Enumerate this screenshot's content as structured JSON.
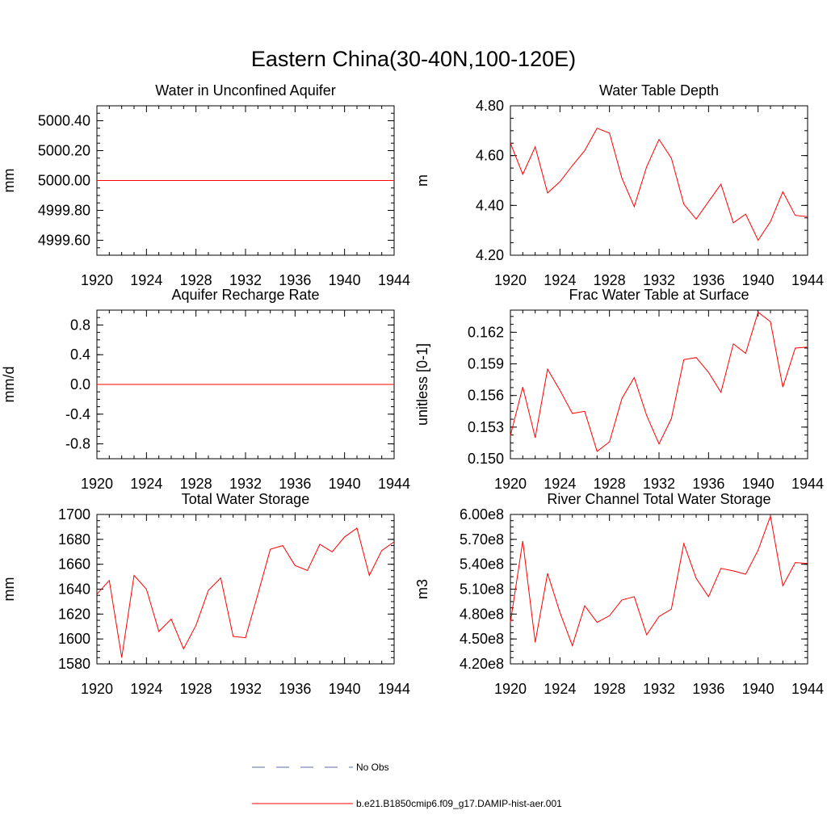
{
  "figure": {
    "title": "Eastern China(30-40N,100-120E)"
  },
  "chart_data": [
    {
      "type": "line",
      "title": "Water in Unconfined Aquifer",
      "ylabel": "mm",
      "xlim": [
        1920,
        1944
      ],
      "ylim": [
        4999.5,
        5000.5
      ],
      "xticks": [
        "1920",
        "1924",
        "1928",
        "1932",
        "1936",
        "1940",
        "1944"
      ],
      "yticks": [
        {
          "v": 4999.6,
          "label": "4999.60"
        },
        {
          "v": 4999.8,
          "label": "4999.80"
        },
        {
          "v": 5000.0,
          "label": "5000.00"
        },
        {
          "v": 5000.2,
          "label": "5000.20"
        },
        {
          "v": 5000.4,
          "label": "5000.40"
        }
      ],
      "x": [
        1920,
        1921,
        1922,
        1923,
        1924,
        1925,
        1926,
        1927,
        1928,
        1929,
        1930,
        1931,
        1932,
        1933,
        1934,
        1935,
        1936,
        1937,
        1938,
        1939,
        1940,
        1941,
        1942,
        1943,
        1944
      ],
      "series": [
        {
          "values": [
            5000,
            5000,
            5000,
            5000,
            5000,
            5000,
            5000,
            5000,
            5000,
            5000,
            5000,
            5000,
            5000,
            5000,
            5000,
            5000,
            5000,
            5000,
            5000,
            5000,
            5000,
            5000,
            5000,
            5000,
            5000
          ]
        }
      ]
    },
    {
      "type": "line",
      "title": "Water Table Depth",
      "ylabel": "m",
      "xlim": [
        1920,
        1944
      ],
      "ylim": [
        4.2,
        4.8
      ],
      "xticks": [
        "1920",
        "1924",
        "1928",
        "1932",
        "1936",
        "1940",
        "1944"
      ],
      "yticks": [
        {
          "v": 4.2,
          "label": "4.20"
        },
        {
          "v": 4.4,
          "label": "4.40"
        },
        {
          "v": 4.6,
          "label": "4.60"
        },
        {
          "v": 4.8,
          "label": "4.80"
        }
      ],
      "x": [
        1920,
        1921,
        1922,
        1923,
        1924,
        1925,
        1926,
        1927,
        1928,
        1929,
        1930,
        1931,
        1932,
        1933,
        1934,
        1935,
        1936,
        1937,
        1938,
        1939,
        1940,
        1941,
        1942,
        1943,
        1944
      ],
      "series": [
        {
          "values": [
            4.65,
            4.525,
            4.635,
            4.45,
            4.495,
            4.56,
            4.62,
            4.71,
            4.69,
            4.51,
            4.395,
            4.555,
            4.665,
            4.59,
            4.405,
            4.345,
            4.415,
            4.485,
            4.33,
            4.365,
            4.26,
            4.335,
            4.455,
            4.36,
            4.355
          ]
        }
      ]
    },
    {
      "type": "line",
      "title": "Aquifer Recharge Rate",
      "ylabel": "mm/d",
      "xlim": [
        1920,
        1944
      ],
      "ylim": [
        -1.0,
        1.0
      ],
      "xticks": [
        "1920",
        "1924",
        "1928",
        "1932",
        "1936",
        "1940",
        "1944"
      ],
      "yticks": [
        {
          "v": -0.8,
          "label": "-0.8"
        },
        {
          "v": -0.4,
          "label": "-0.4"
        },
        {
          "v": 0.0,
          "label": "0.0"
        },
        {
          "v": 0.4,
          "label": "0.4"
        },
        {
          "v": 0.8,
          "label": "0.8"
        }
      ],
      "x": [
        1920,
        1921,
        1922,
        1923,
        1924,
        1925,
        1926,
        1927,
        1928,
        1929,
        1930,
        1931,
        1932,
        1933,
        1934,
        1935,
        1936,
        1937,
        1938,
        1939,
        1940,
        1941,
        1942,
        1943,
        1944
      ],
      "series": [
        {
          "values": [
            0,
            0,
            0,
            0,
            0,
            0,
            0,
            0,
            0,
            0,
            0,
            0,
            0,
            0,
            0,
            0,
            0,
            0,
            0,
            0,
            0,
            0,
            0,
            0,
            0
          ]
        }
      ]
    },
    {
      "type": "line",
      "title": "Frac Water Table at Surface",
      "ylabel": "unitless [0-1]",
      "xlim": [
        1920,
        1944
      ],
      "ylim": [
        0.15,
        0.1641
      ],
      "xticks": [
        "1920",
        "1924",
        "1928",
        "1932",
        "1936",
        "1940",
        "1944"
      ],
      "yticks": [
        {
          "v": 0.15,
          "label": "0.150"
        },
        {
          "v": 0.153,
          "label": "0.153"
        },
        {
          "v": 0.156,
          "label": "0.156"
        },
        {
          "v": 0.159,
          "label": "0.159"
        },
        {
          "v": 0.162,
          "label": "0.162"
        }
      ],
      "x": [
        1920,
        1921,
        1922,
        1923,
        1924,
        1925,
        1926,
        1927,
        1928,
        1929,
        1930,
        1931,
        1932,
        1933,
        1934,
        1935,
        1936,
        1937,
        1938,
        1939,
        1940,
        1941,
        1942,
        1943,
        1944
      ],
      "series": [
        {
          "values": [
            0.1522,
            0.1568,
            0.152,
            0.1585,
            0.1565,
            0.1543,
            0.1545,
            0.1507,
            0.1516,
            0.1557,
            0.1577,
            0.1541,
            0.1514,
            0.1538,
            0.1594,
            0.1596,
            0.1582,
            0.1563,
            0.1609,
            0.16,
            0.1639,
            0.163,
            0.1568,
            0.1605,
            0.1606
          ]
        }
      ]
    },
    {
      "type": "line",
      "title": "Total Water Storage",
      "ylabel": "mm",
      "xlim": [
        1920,
        1944
      ],
      "ylim": [
        1580,
        1700
      ],
      "xticks": [
        "1920",
        "1924",
        "1928",
        "1932",
        "1936",
        "1940",
        "1944"
      ],
      "yticks": [
        {
          "v": 1580,
          "label": "1580"
        },
        {
          "v": 1600,
          "label": "1600"
        },
        {
          "v": 1620,
          "label": "1620"
        },
        {
          "v": 1640,
          "label": "1640"
        },
        {
          "v": 1660,
          "label": "1660"
        },
        {
          "v": 1680,
          "label": "1680"
        },
        {
          "v": 1700,
          "label": "1700"
        }
      ],
      "x": [
        1920,
        1921,
        1922,
        1923,
        1924,
        1925,
        1926,
        1927,
        1928,
        1929,
        1930,
        1931,
        1932,
        1933,
        1934,
        1935,
        1936,
        1937,
        1938,
        1939,
        1940,
        1941,
        1942,
        1943,
        1944
      ],
      "series": [
        {
          "values": [
            1636,
            1647,
            1585,
            1651,
            1640,
            1606,
            1616,
            1592,
            1611,
            1639,
            1649,
            1602,
            1601,
            1636,
            1672,
            1675,
            1659,
            1655,
            1676,
            1670,
            1682,
            1689,
            1651,
            1671,
            1678
          ]
        }
      ]
    },
    {
      "type": "line",
      "title": "River Channel Total Water Storage",
      "ylabel": "m3",
      "xlim": [
        1920,
        1944
      ],
      "ylim": [
        4.2,
        6.0
      ],
      "xticks": [
        "1920",
        "1924",
        "1928",
        "1932",
        "1936",
        "1940",
        "1944"
      ],
      "yticks": [
        {
          "v": 4.2,
          "label": "4.20e8"
        },
        {
          "v": 4.5,
          "label": "4.50e8"
        },
        {
          "v": 4.8,
          "label": "4.80e8"
        },
        {
          "v": 5.1,
          "label": "5.10e8"
        },
        {
          "v": 5.4,
          "label": "5.40e8"
        },
        {
          "v": 5.7,
          "label": "5.70e8"
        },
        {
          "v": 6.0,
          "label": "6.00e8"
        }
      ],
      "x": [
        1920,
        1921,
        1922,
        1923,
        1924,
        1925,
        1926,
        1927,
        1928,
        1929,
        1930,
        1931,
        1932,
        1933,
        1934,
        1935,
        1936,
        1937,
        1938,
        1939,
        1940,
        1941,
        1942,
        1943,
        1944
      ],
      "series": [
        {
          "values": [
            4.7,
            5.68,
            4.46,
            5.29,
            4.82,
            4.42,
            4.9,
            4.7,
            4.78,
            4.97,
            5.01,
            4.55,
            4.77,
            4.86,
            5.65,
            5.23,
            5.01,
            5.35,
            5.32,
            5.28,
            5.57,
            5.98,
            5.14,
            5.42,
            5.41
          ]
        }
      ]
    }
  ],
  "legend": {
    "items": [
      {
        "label": "No Obs",
        "color": "#5c6aa8",
        "dash": true
      },
      {
        "label": "b.e21.B1850cmip6.f09_g17.DAMIP-hist-aer.001",
        "color": "#ff0000",
        "dash": false
      }
    ]
  },
  "colors": {
    "series": "#ff0000"
  }
}
